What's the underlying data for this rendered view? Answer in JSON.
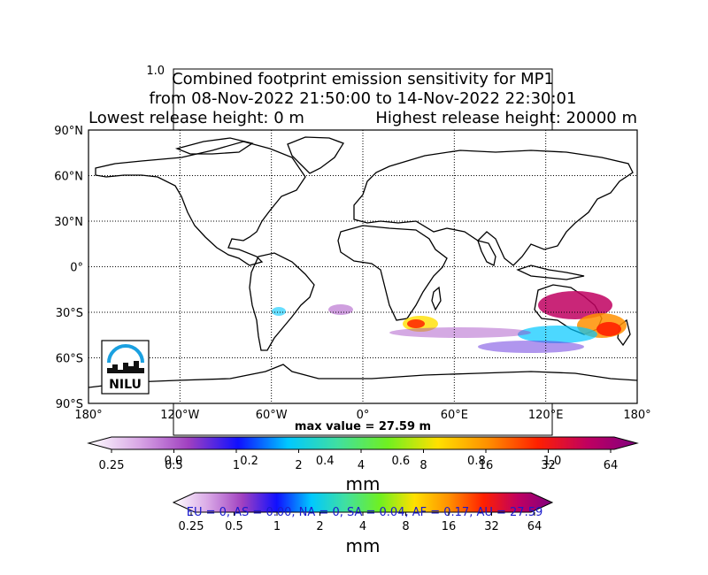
{
  "chart_data": {
    "type": "heatmap",
    "title_lines": [
      "Combined footprint emission sensitivity for MP1",
      "from 08-Nov-2022 21:50:00 to 14-Nov-2022 22:30:01"
    ],
    "release_low": "Lowest release height: 0 m",
    "release_high": "Highest release height: 20000 m",
    "overlay_axis_top_label": "1.0",
    "lat_labels": [
      "90°N",
      "60°N",
      "30°N",
      "0°",
      "30°S",
      "60°S",
      "90°S"
    ],
    "lat_values": [
      90,
      60,
      30,
      0,
      -30,
      -60,
      -90
    ],
    "lon_labels": [
      "180°",
      "120°W",
      "60°W",
      "0°",
      "60°E",
      "120°E",
      "180°"
    ],
    "lon_values": [
      -180,
      -120,
      -60,
      0,
      60,
      120,
      180
    ],
    "xlim": [
      -180,
      180
    ],
    "ylim": [
      -90,
      90
    ],
    "max_value_label": "max value = 27.59 m",
    "logo_text": "NILU",
    "colorbar_main": {
      "ticks": [
        "0.25",
        "0.5",
        "1",
        "2",
        "4",
        "8",
        "16",
        "32",
        "64"
      ],
      "unit": "mm"
    },
    "overlay_axis_ticks": [
      "0.0",
      "0.2",
      "0.4",
      "0.6",
      "0.8",
      "1.0"
    ],
    "colorbar_second": {
      "ticks": [
        "0.25",
        "0.5",
        "1",
        "2",
        "4",
        "8",
        "16",
        "32",
        "64"
      ],
      "unit": "mm"
    },
    "region_summary": "EU = 0,  AS = 0.00,  NA = 0,  SA = 0.04,  AF = 0.17,  AU = 27.59",
    "colors": {
      "scale": [
        "#ffffff",
        "#d9a8e6",
        "#a040c0",
        "#1010ff",
        "#00c8ff",
        "#40e0a0",
        "#70f020",
        "#ffe000",
        "#ff9000",
        "#ff2000",
        "#c00060",
        "#800080"
      ],
      "region_text": "#1a1acc"
    }
  }
}
